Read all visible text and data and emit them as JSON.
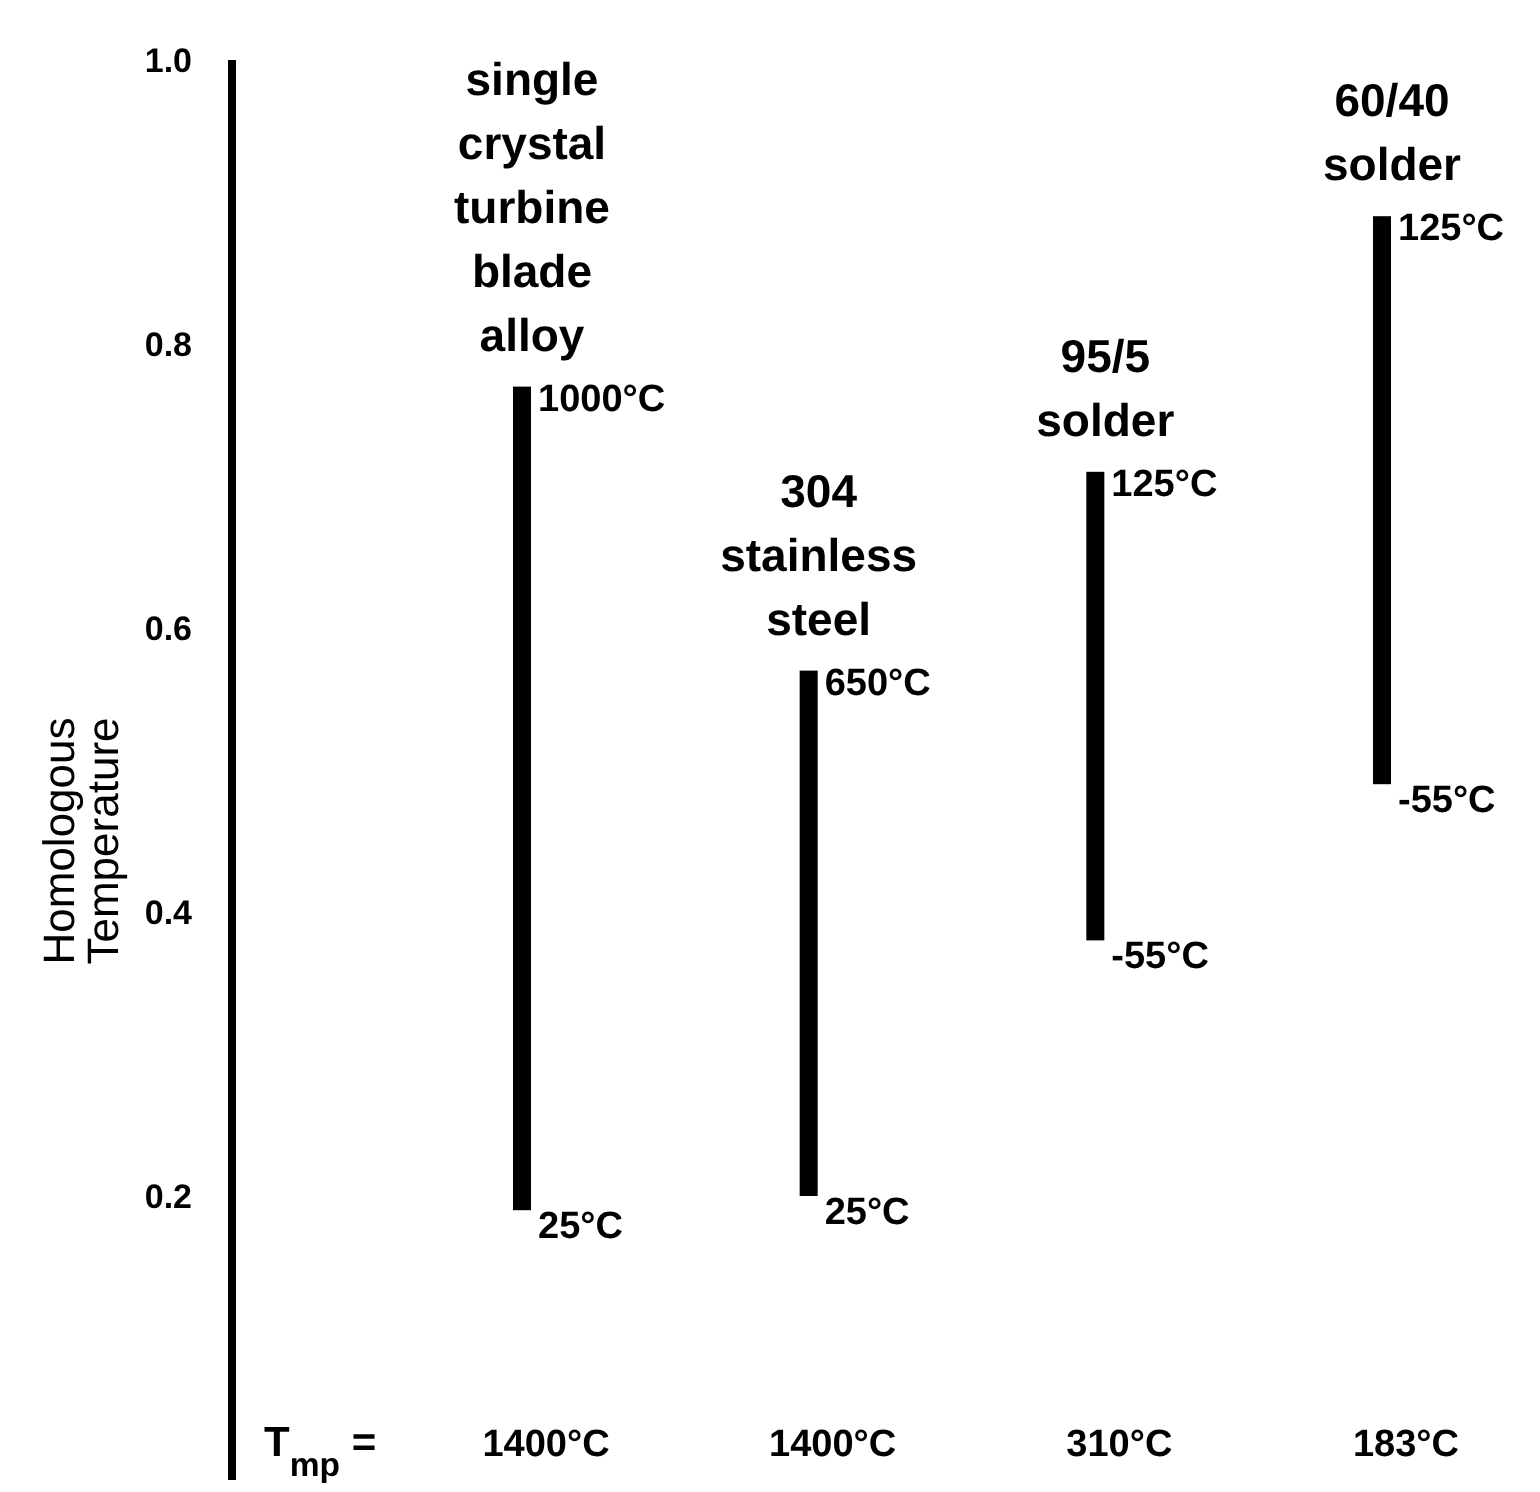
{
  "chart_data": {
    "type": "bar",
    "ylabel": "Homologous Temperature",
    "categories": [
      "single crystal turbine blade alloy",
      "304 stainless steel",
      "95/5 solder",
      "60/40 solder"
    ],
    "base": [
      0.19,
      0.2,
      0.38,
      0.49
    ],
    "values": [
      0.58,
      0.37,
      0.33,
      0.4
    ],
    "color": "#000000",
    "ylim": [
      0,
      1
    ],
    "yticks": [
      {
        "value": 1,
        "label": "1.0"
      },
      0.8,
      0.6,
      0.4,
      0.2
    ],
    "grid": false,
    "annotations": [
      {
        "text": "1000°C",
        "x": "single crystal turbine blade alloy",
        "y": 0.77
      },
      {
        "text": "25°C",
        "x": "single crystal turbine blade alloy",
        "y": 0.19
      },
      {
        "text": "650°C",
        "x": "304 stainless steel",
        "y": 0.57
      },
      {
        "text": "25°C",
        "x": "304 stainless steel",
        "y": 0.2
      },
      {
        "text": "125°C",
        "x": "95/5 solder",
        "y": 0.71
      },
      {
        "text": "-55°C",
        "x": "95/5 solder",
        "y": 0.38
      },
      {
        "text": "125°C",
        "x": "60/40 solder",
        "y": 0.89
      },
      {
        "text": "-55°C",
        "x": "60/40 solder",
        "y": 0.49
      },
      "T$_{mp}$ =",
      "1400°C",
      "1400°C",
      "310°C",
      "183°C"
    ]
  }
}
